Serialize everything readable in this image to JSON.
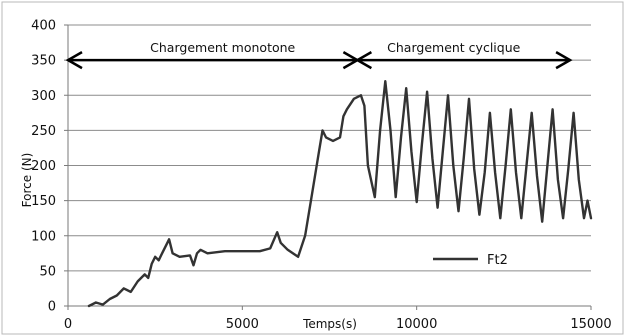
{
  "chart_data": {
    "type": "line",
    "xlabel": "Temps(s)",
    "ylabel": "Force (N)",
    "xlim": [
      0,
      15000
    ],
    "ylim": [
      0,
      400
    ],
    "x_ticks": [
      0,
      5000,
      10000,
      15000
    ],
    "y_ticks": [
      0,
      50,
      100,
      150,
      200,
      250,
      300,
      350,
      400
    ],
    "grid": "horizontal",
    "legend_position": "bottom-right",
    "series": [
      {
        "name": "Ft2",
        "color": "#333333",
        "x": [
          600,
          800,
          1000,
          1200,
          1400,
          1600,
          1800,
          2000,
          2200,
          2300,
          2400,
          2500,
          2600,
          2700,
          2800,
          2900,
          3000,
          3200,
          3500,
          3600,
          3700,
          3800,
          4000,
          4500,
          5000,
          5500,
          5800,
          6000,
          6100,
          6300,
          6600,
          6800,
          7000,
          7200,
          7300,
          7400,
          7600,
          7800,
          7900,
          8000,
          8200,
          8400,
          8500,
          8600,
          8800,
          8950,
          9100,
          9250,
          9400,
          9550,
          9700,
          9850,
          10000,
          10150,
          10300,
          10450,
          10600,
          10750,
          10900,
          11050,
          11200,
          11350,
          11500,
          11650,
          11800,
          11950,
          12100,
          12250,
          12400,
          12550,
          12700,
          12850,
          13000,
          13150,
          13300,
          13450,
          13600,
          13750,
          13900,
          14050,
          14200,
          14350,
          14500,
          14650,
          14800,
          14900,
          15000
        ],
        "y": [
          0,
          5,
          2,
          10,
          15,
          25,
          20,
          35,
          45,
          40,
          60,
          70,
          65,
          75,
          85,
          95,
          75,
          70,
          72,
          58,
          75,
          80,
          75,
          78,
          78,
          78,
          82,
          105,
          90,
          80,
          70,
          100,
          160,
          220,
          250,
          240,
          235,
          240,
          270,
          280,
          295,
          300,
          285,
          200,
          155,
          250,
          320,
          250,
          155,
          240,
          310,
          220,
          148,
          230,
          305,
          210,
          140,
          220,
          300,
          200,
          135,
          210,
          295,
          195,
          130,
          190,
          275,
          190,
          125,
          200,
          280,
          190,
          125,
          200,
          275,
          185,
          120,
          200,
          280,
          180,
          125,
          195,
          275,
          180,
          125,
          150,
          125
        ]
      }
    ],
    "annotations": {
      "left_phase": "Chargement monotone",
      "right_phase": "Chargement cyclique",
      "left_phase_range": [
        0,
        8300
      ],
      "right_phase_range": [
        8300,
        14400
      ],
      "arrow_y": 350
    }
  }
}
